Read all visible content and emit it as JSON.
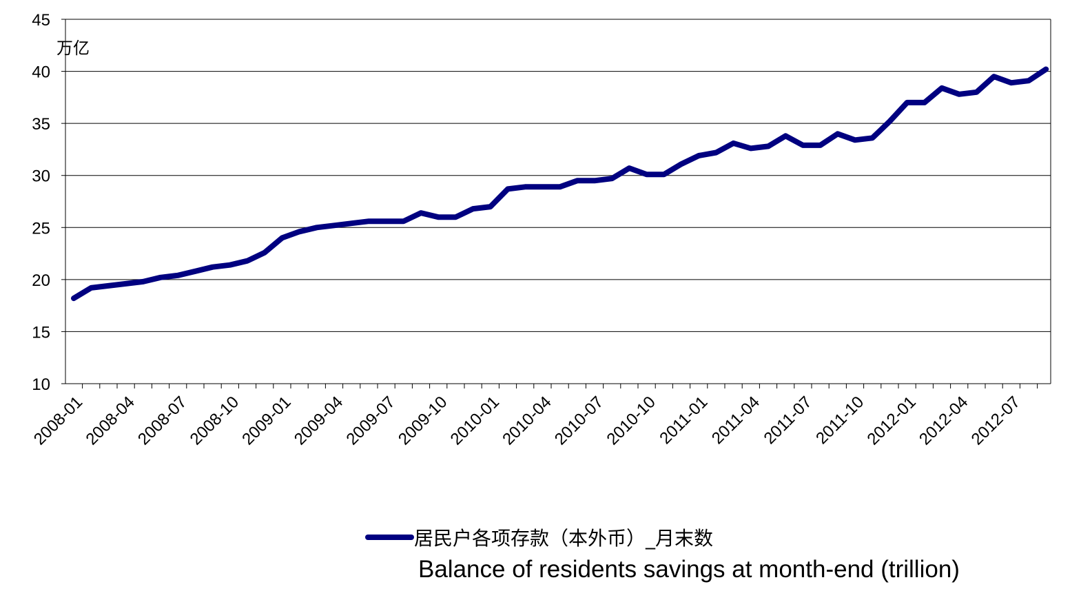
{
  "chart_data": {
    "type": "line",
    "unit_label": "万亿",
    "ylim": [
      10,
      45
    ],
    "y_ticks": [
      10,
      15,
      20,
      25,
      30,
      35,
      40,
      45
    ],
    "x_tick_labels": [
      "2008-01",
      "2008-04",
      "2008-07",
      "2008-10",
      "2009-01",
      "2009-04",
      "2009-07",
      "2009-10",
      "2010-01",
      "2010-04",
      "2010-07",
      "2010-10",
      "2011-01",
      "2011-04",
      "2011-07",
      "2011-10",
      "2012-01",
      "2012-04",
      "2012-07"
    ],
    "x": [
      "2008-01",
      "2008-02",
      "2008-03",
      "2008-04",
      "2008-05",
      "2008-06",
      "2008-07",
      "2008-08",
      "2008-09",
      "2008-10",
      "2008-11",
      "2008-12",
      "2009-01",
      "2009-02",
      "2009-03",
      "2009-04",
      "2009-05",
      "2009-06",
      "2009-07",
      "2009-08",
      "2009-09",
      "2009-10",
      "2009-11",
      "2009-12",
      "2010-01",
      "2010-02",
      "2010-03",
      "2010-04",
      "2010-05",
      "2010-06",
      "2010-07",
      "2010-08",
      "2010-09",
      "2010-10",
      "2010-11",
      "2010-12",
      "2011-01",
      "2011-02",
      "2011-03",
      "2011-04",
      "2011-05",
      "2011-06",
      "2011-07",
      "2011-08",
      "2011-09",
      "2011-10",
      "2011-11",
      "2011-12",
      "2012-01",
      "2012-02",
      "2012-03",
      "2012-04",
      "2012-05",
      "2012-06",
      "2012-07",
      "2012-08",
      "2012-09"
    ],
    "series": [
      {
        "name": "居民户各项存款（本外币）_月末数",
        "color": "#000080",
        "values": [
          18.2,
          19.2,
          19.4,
          19.6,
          19.8,
          20.2,
          20.4,
          20.8,
          21.2,
          21.4,
          21.8,
          22.6,
          24.0,
          24.6,
          25.0,
          25.2,
          25.4,
          25.6,
          25.6,
          25.6,
          26.4,
          26.0,
          26.0,
          26.8,
          27.0,
          28.7,
          28.9,
          28.9,
          28.9,
          29.5,
          29.5,
          29.7,
          30.7,
          30.1,
          30.1,
          31.1,
          31.9,
          32.2,
          33.1,
          32.6,
          32.8,
          33.8,
          32.9,
          32.9,
          34.0,
          33.4,
          33.6,
          35.2,
          37.0,
          37.0,
          38.4,
          37.8,
          38.0,
          39.5,
          38.9,
          39.1,
          40.2
        ]
      }
    ],
    "grid": true,
    "legend_position": "bottom-center",
    "caption": "Balance of residents savings at month-end (trillion)"
  }
}
